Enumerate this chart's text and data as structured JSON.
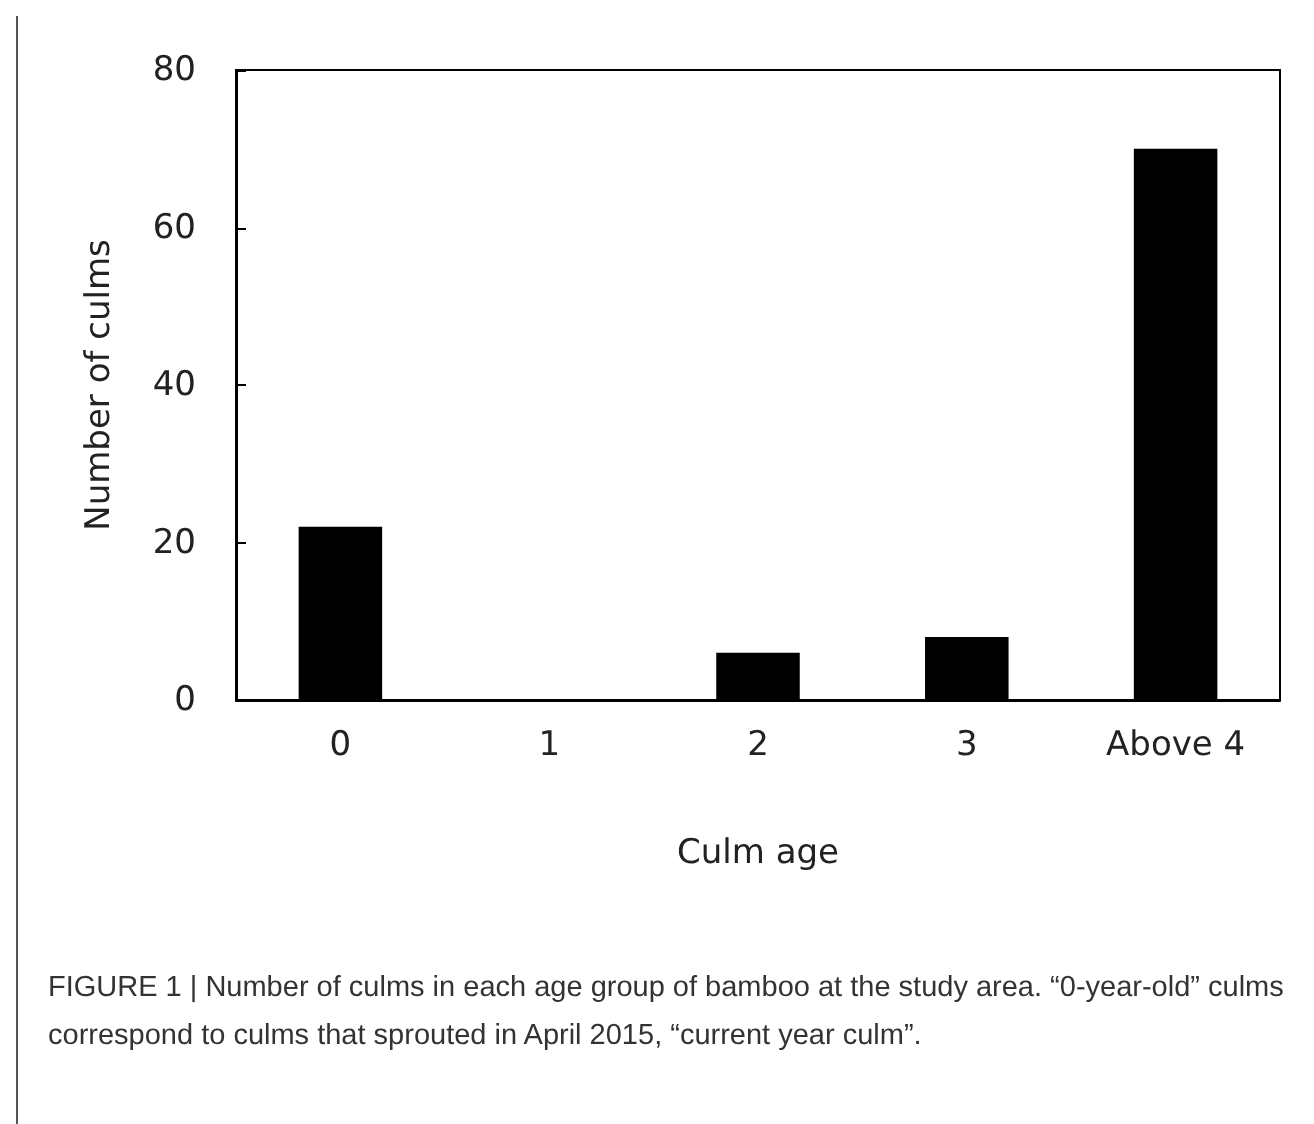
{
  "chart_data": {
    "type": "bar",
    "categories": [
      "0",
      "1",
      "2",
      "3",
      "Above 4"
    ],
    "values": [
      22,
      0,
      6,
      8,
      70
    ],
    "color": "#000000",
    "xlabel": "Culm age",
    "ylabel": "Number of culms",
    "ylim": [
      0,
      80
    ],
    "yticks": [
      0,
      20,
      40,
      60,
      80
    ],
    "grid": false,
    "annotations": [
      "FIGURE 1 | Number of culms in each age group of bamboo at the study area. “0-year-old” culms correspond to culms that sprouted in April 2015, “current year culm”."
    ]
  }
}
